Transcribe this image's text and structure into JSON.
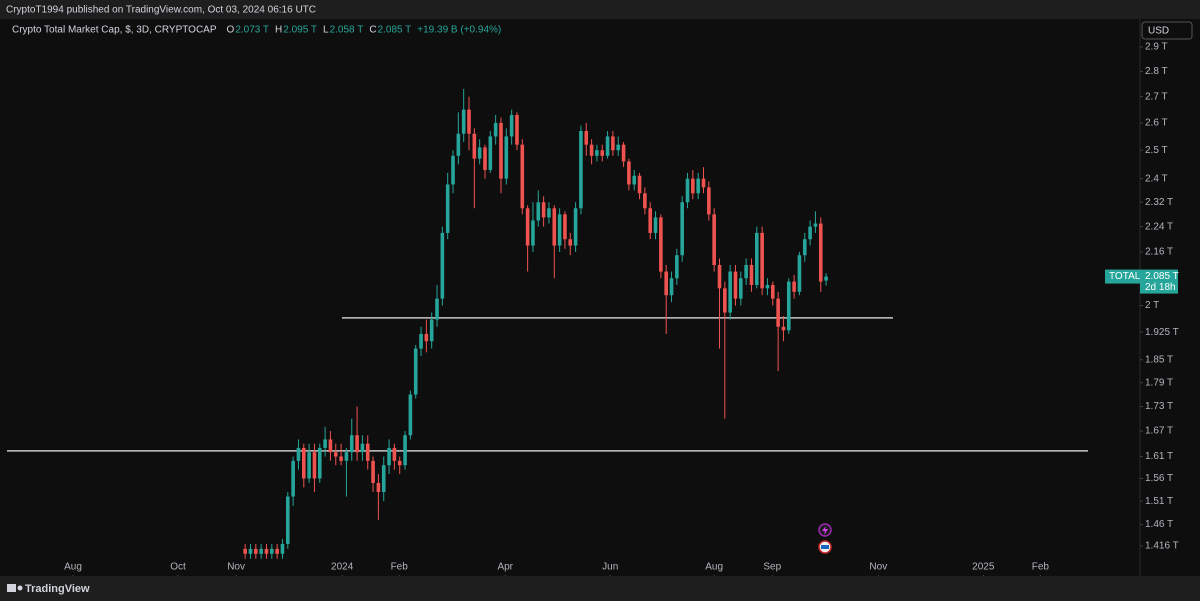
{
  "header": "CryptoT1994 published on TradingView.com, Oct 03, 2024 06:16 UTC",
  "footer": "TradingView",
  "chart_data": {
    "type": "candlestick",
    "title": "Crypto Total Market Cap, $, 3D, CRYPTOCAP",
    "legend": [
      {
        "key": "O",
        "label": "2.073 T"
      },
      {
        "key": "H",
        "label": "2.095 T"
      },
      {
        "key": "L",
        "label": "2.058 T"
      },
      {
        "key": "C",
        "label": "2.085 T"
      }
    ],
    "change": "+19.39 B (+0.94%)",
    "currency": "USD",
    "up_color": "#26a69a",
    "down_color": "#ef5350",
    "log_scale": true,
    "open": [
      1.41,
      1.4,
      1.41,
      1.4,
      1.41,
      1.4,
      1.41,
      1.4,
      1.42,
      1.52,
      1.6,
      1.63,
      1.56,
      1.62,
      1.56,
      1.63,
      1.65,
      1.62,
      1.61,
      1.6,
      1.62,
      1.66,
      1.62,
      1.64,
      1.6,
      1.55,
      1.53,
      1.59,
      1.63,
      1.6,
      1.59,
      1.66,
      1.76,
      1.88,
      1.92,
      1.9,
      1.96,
      2.02,
      2.22,
      2.38,
      2.48,
      2.56,
      2.65,
      2.56,
      2.47,
      2.51,
      2.43,
      2.55,
      2.6,
      2.4,
      2.55,
      2.63,
      2.52,
      2.3,
      2.18,
      2.26,
      2.32,
      2.27,
      2.3,
      2.18,
      2.28,
      2.2,
      2.18,
      2.3,
      2.57,
      2.52,
      2.48,
      2.5,
      2.48,
      2.55,
      2.5,
      2.52,
      2.46,
      2.38,
      2.41,
      2.35,
      2.3,
      2.22,
      2.27,
      2.1,
      2.03,
      2.08,
      2.15,
      2.32,
      2.4,
      2.35,
      2.4,
      2.37,
      2.28,
      2.12,
      2.05,
      1.98,
      2.1,
      2.02,
      2.08,
      2.12,
      2.06,
      2.22,
      2.05,
      2.06,
      2.02,
      1.94,
      1.93,
      2.07,
      2.04,
      2.15,
      2.2,
      2.24,
      2.25,
      2.073
    ],
    "high": [
      1.42,
      1.42,
      1.42,
      1.42,
      1.42,
      1.42,
      1.42,
      1.43,
      1.53,
      1.61,
      1.65,
      1.64,
      1.64,
      1.64,
      1.64,
      1.68,
      1.67,
      1.64,
      1.64,
      1.63,
      1.7,
      1.73,
      1.66,
      1.66,
      1.61,
      1.57,
      1.61,
      1.65,
      1.64,
      1.61,
      1.67,
      1.77,
      1.89,
      1.94,
      1.96,
      1.98,
      2.06,
      2.24,
      2.42,
      2.5,
      2.64,
      2.73,
      2.7,
      2.58,
      2.54,
      2.52,
      2.57,
      2.63,
      2.62,
      2.58,
      2.65,
      2.64,
      2.54,
      2.31,
      2.32,
      2.36,
      2.34,
      2.32,
      2.31,
      2.3,
      2.29,
      2.22,
      2.32,
      2.59,
      2.6,
      2.54,
      2.52,
      2.52,
      2.57,
      2.57,
      2.55,
      2.53,
      2.47,
      2.43,
      2.42,
      2.37,
      2.32,
      2.29,
      2.28,
      2.12,
      2.1,
      2.17,
      2.34,
      2.42,
      2.43,
      2.42,
      2.44,
      2.39,
      2.3,
      2.14,
      2.07,
      2.12,
      2.12,
      2.1,
      2.14,
      2.14,
      2.24,
      2.24,
      2.08,
      2.07,
      2.04,
      1.97,
      2.08,
      2.09,
      2.16,
      2.22,
      2.26,
      2.29,
      2.27,
      2.095
    ],
    "low": [
      1.39,
      1.39,
      1.39,
      1.39,
      1.39,
      1.39,
      1.39,
      1.39,
      1.41,
      1.5,
      1.58,
      1.54,
      1.55,
      1.53,
      1.55,
      1.61,
      1.6,
      1.59,
      1.59,
      1.52,
      1.6,
      1.6,
      1.6,
      1.58,
      1.53,
      1.47,
      1.51,
      1.57,
      1.58,
      1.57,
      1.58,
      1.65,
      1.75,
      1.86,
      1.87,
      1.88,
      1.94,
      2.0,
      2.2,
      2.35,
      2.45,
      2.53,
      2.5,
      2.3,
      2.45,
      2.4,
      2.42,
      2.52,
      2.35,
      2.38,
      2.52,
      2.5,
      2.28,
      2.1,
      2.16,
      2.24,
      2.24,
      2.25,
      2.08,
      2.16,
      2.17,
      2.15,
      2.16,
      2.28,
      2.48,
      2.45,
      2.46,
      2.46,
      2.47,
      2.48,
      2.48,
      2.44,
      2.36,
      2.36,
      2.33,
      2.28,
      2.2,
      2.2,
      2.08,
      1.92,
      2.01,
      2.06,
      2.13,
      2.3,
      2.33,
      2.33,
      2.35,
      2.26,
      2.1,
      1.88,
      1.7,
      1.96,
      2.0,
      2.0,
      2.06,
      2.04,
      2.05,
      2.03,
      2.03,
      2.0,
      1.82,
      1.9,
      1.92,
      2.02,
      2.03,
      2.13,
      2.18,
      2.22,
      2.04,
      2.058
    ],
    "close": [
      1.4,
      1.41,
      1.4,
      1.41,
      1.4,
      1.41,
      1.4,
      1.42,
      1.52,
      1.6,
      1.63,
      1.56,
      1.62,
      1.56,
      1.63,
      1.65,
      1.62,
      1.61,
      1.6,
      1.62,
      1.66,
      1.62,
      1.64,
      1.6,
      1.55,
      1.53,
      1.59,
      1.63,
      1.6,
      1.59,
      1.66,
      1.76,
      1.88,
      1.92,
      1.9,
      1.96,
      2.02,
      2.22,
      2.38,
      2.48,
      2.56,
      2.65,
      2.56,
      2.47,
      2.51,
      2.43,
      2.55,
      2.6,
      2.4,
      2.55,
      2.63,
      2.52,
      2.3,
      2.18,
      2.26,
      2.32,
      2.27,
      2.3,
      2.18,
      2.28,
      2.2,
      2.18,
      2.3,
      2.57,
      2.52,
      2.48,
      2.5,
      2.48,
      2.55,
      2.5,
      2.52,
      2.46,
      2.38,
      2.41,
      2.35,
      2.3,
      2.22,
      2.27,
      2.1,
      2.03,
      2.08,
      2.15,
      2.32,
      2.4,
      2.35,
      2.4,
      2.37,
      2.28,
      2.12,
      2.05,
      1.98,
      2.1,
      2.02,
      2.08,
      2.12,
      2.06,
      2.22,
      2.05,
      2.06,
      2.02,
      1.94,
      1.93,
      2.07,
      2.04,
      2.15,
      2.2,
      2.24,
      2.25,
      2.07,
      2.085
    ],
    "xlim": [
      -46,
      167.9
    ],
    "xticks": [
      {
        "value": -32.3,
        "label": "Aug"
      },
      {
        "value": -12.6,
        "label": "Oct"
      },
      {
        "value": -1.7,
        "label": "Nov"
      },
      {
        "value": 18.2,
        "label": "2024"
      },
      {
        "value": 28.9,
        "label": "Feb"
      },
      {
        "value": 48.8,
        "label": "Apr"
      },
      {
        "value": 68.5,
        "label": "Jun"
      },
      {
        "value": 88.0,
        "label": "Aug"
      },
      {
        "value": 98.9,
        "label": "Sep"
      },
      {
        "value": 118.8,
        "label": "Nov"
      },
      {
        "value": 138.5,
        "label": "2025"
      },
      {
        "value": 149.2,
        "label": "Feb"
      }
    ],
    "ylim": [
      1.358,
      3.023
    ],
    "yticks": [
      {
        "value": 2.9,
        "label": "2.9 T"
      },
      {
        "value": 2.8,
        "label": "2.8 T"
      },
      {
        "value": 2.7,
        "label": "2.7 T"
      },
      {
        "value": 2.6,
        "label": "2.6 T"
      },
      {
        "value": 2.5,
        "label": "2.5 T"
      },
      {
        "value": 2.4,
        "label": "2.4 T"
      },
      {
        "value": 2.32,
        "label": "2.32 T"
      },
      {
        "value": 2.24,
        "label": "2.24 T"
      },
      {
        "value": 2.16,
        "label": "2.16 T"
      },
      {
        "value": 2,
        "label": "2 T"
      },
      {
        "value": 1.925,
        "label": "1.925 T"
      },
      {
        "value": 1.85,
        "label": "1.85 T"
      },
      {
        "value": 1.79,
        "label": "1.79 T"
      },
      {
        "value": 1.73,
        "label": "1.73 T"
      },
      {
        "value": 1.67,
        "label": "1.67 T"
      },
      {
        "value": 1.61,
        "label": "1.61 T"
      },
      {
        "value": 1.56,
        "label": "1.56 T"
      },
      {
        "value": 1.51,
        "label": "1.51 T"
      },
      {
        "value": 1.46,
        "label": "1.46 T"
      },
      {
        "value": 1.416,
        "label": "1.416 T"
      }
    ],
    "horizontal_lines": [
      1.965,
      1.623
    ],
    "last_price": {
      "name": "TOTAL",
      "value": 2.085,
      "label": "2.085 T",
      "countdown": "2d 18h"
    }
  }
}
